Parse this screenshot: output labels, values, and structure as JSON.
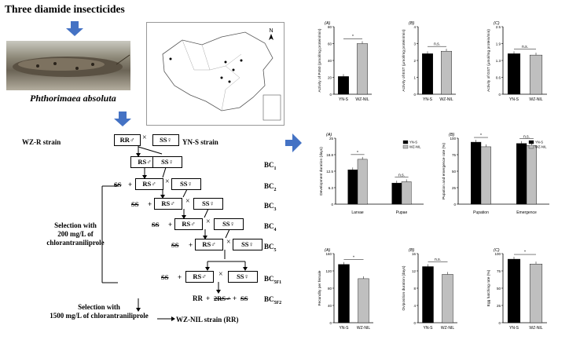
{
  "title": "Three diamide insecticides",
  "species": "Phthorimaea absoluta",
  "scheme": {
    "wz_r": "WZ-R strain",
    "yn_s": "YN-S strain",
    "rr_male": "RR♂",
    "ss_female": "SS♀",
    "rs_male": "RS♂",
    "ss_cross": "SS",
    "plus": "+",
    "cross": "×",
    "bc_labels": [
      "BC",
      "BC",
      "BC",
      "BC",
      "BC",
      "BC",
      "BC"
    ],
    "bc_subs": [
      "1",
      "2",
      "3",
      "4",
      "5",
      "5F1",
      "5F2"
    ],
    "selection1": [
      "Selection with",
      "200 mg/L of",
      "chlorantraniliprole"
    ],
    "selection2": [
      "Selection with",
      "1500 mg/L of chlorantraniliprole"
    ],
    "final_rr": "RR",
    "final_2rs": "2RS♂",
    "final_ss": "SS",
    "wz_nil": "WZ-NIL strain (RR)"
  },
  "colors": {
    "arrow_blue": "#4472c4",
    "black_bar": "#000000",
    "grey_bar": "#bfbfbf"
  },
  "chart_data": [
    {
      "type": "bar",
      "panel": "(A)",
      "ylabel": "Activity of P450 (pmol/mg protein/min)",
      "categories": [
        "YN-S",
        "WZ-NIL"
      ],
      "values": [
        21,
        60
      ],
      "ylim": [
        0,
        80
      ],
      "sig": "*"
    },
    {
      "type": "bar",
      "panel": "(B)",
      "ylabel": "Activity of EST (μmol/mg protein/min)",
      "categories": [
        "YN-S",
        "WZ-NIL"
      ],
      "values": [
        2.4,
        2.55
      ],
      "ylim": [
        0,
        4
      ],
      "sig": "n.s."
    },
    {
      "type": "bar",
      "panel": "(C)",
      "ylabel": "Activity of GST (μmol/mg protein/min)",
      "categories": [
        "YN-S",
        "WZ-NIL"
      ],
      "values": [
        1.5,
        1.45
      ],
      "ylim": [
        0,
        2.5
      ],
      "sig": "n.s."
    },
    {
      "type": "bar",
      "panel": "(A)",
      "ylabel": "Development duration (days)",
      "categories": [
        "Larvae",
        "Pupae"
      ],
      "series": [
        {
          "name": "YN-S",
          "values": [
            13,
            8
          ]
        },
        {
          "name": "WZ-NIL",
          "values": [
            17,
            8.5
          ]
        }
      ],
      "ylim": [
        0,
        25
      ],
      "sig": [
        "*",
        "n.s."
      ]
    },
    {
      "type": "bar",
      "panel": "(B)",
      "ylabel": "Pupation and emergence rate (%)",
      "categories": [
        "Pupation",
        "Emergence"
      ],
      "series": [
        {
          "name": "YN-S",
          "values": [
            94,
            92
          ]
        },
        {
          "name": "WZ-NIL",
          "values": [
            87,
            89
          ]
        }
      ],
      "ylim": [
        0,
        100
      ],
      "sig": [
        "*",
        "n.s."
      ]
    },
    {
      "type": "bar",
      "panel": "(A)",
      "ylabel": "Fecundity per female",
      "categories": [
        "YN-S",
        "WZ-NIL"
      ],
      "values": [
        135,
        102
      ],
      "ylim": [
        0,
        160
      ],
      "sig": "*"
    },
    {
      "type": "bar",
      "panel": "(B)",
      "ylabel": "Oviposition duration (days)",
      "categories": [
        "YN-S",
        "WZ-NIL"
      ],
      "values": [
        13,
        11.2
      ],
      "ylim": [
        0,
        16
      ],
      "sig": "n.s."
    },
    {
      "type": "bar",
      "panel": "(C)",
      "ylabel": "Egg hatching rate (%)",
      "categories": [
        "YN-S",
        "WZ-NIL"
      ],
      "values": [
        92,
        85
      ],
      "ylim": [
        0,
        100
      ],
      "sig": "*"
    }
  ]
}
